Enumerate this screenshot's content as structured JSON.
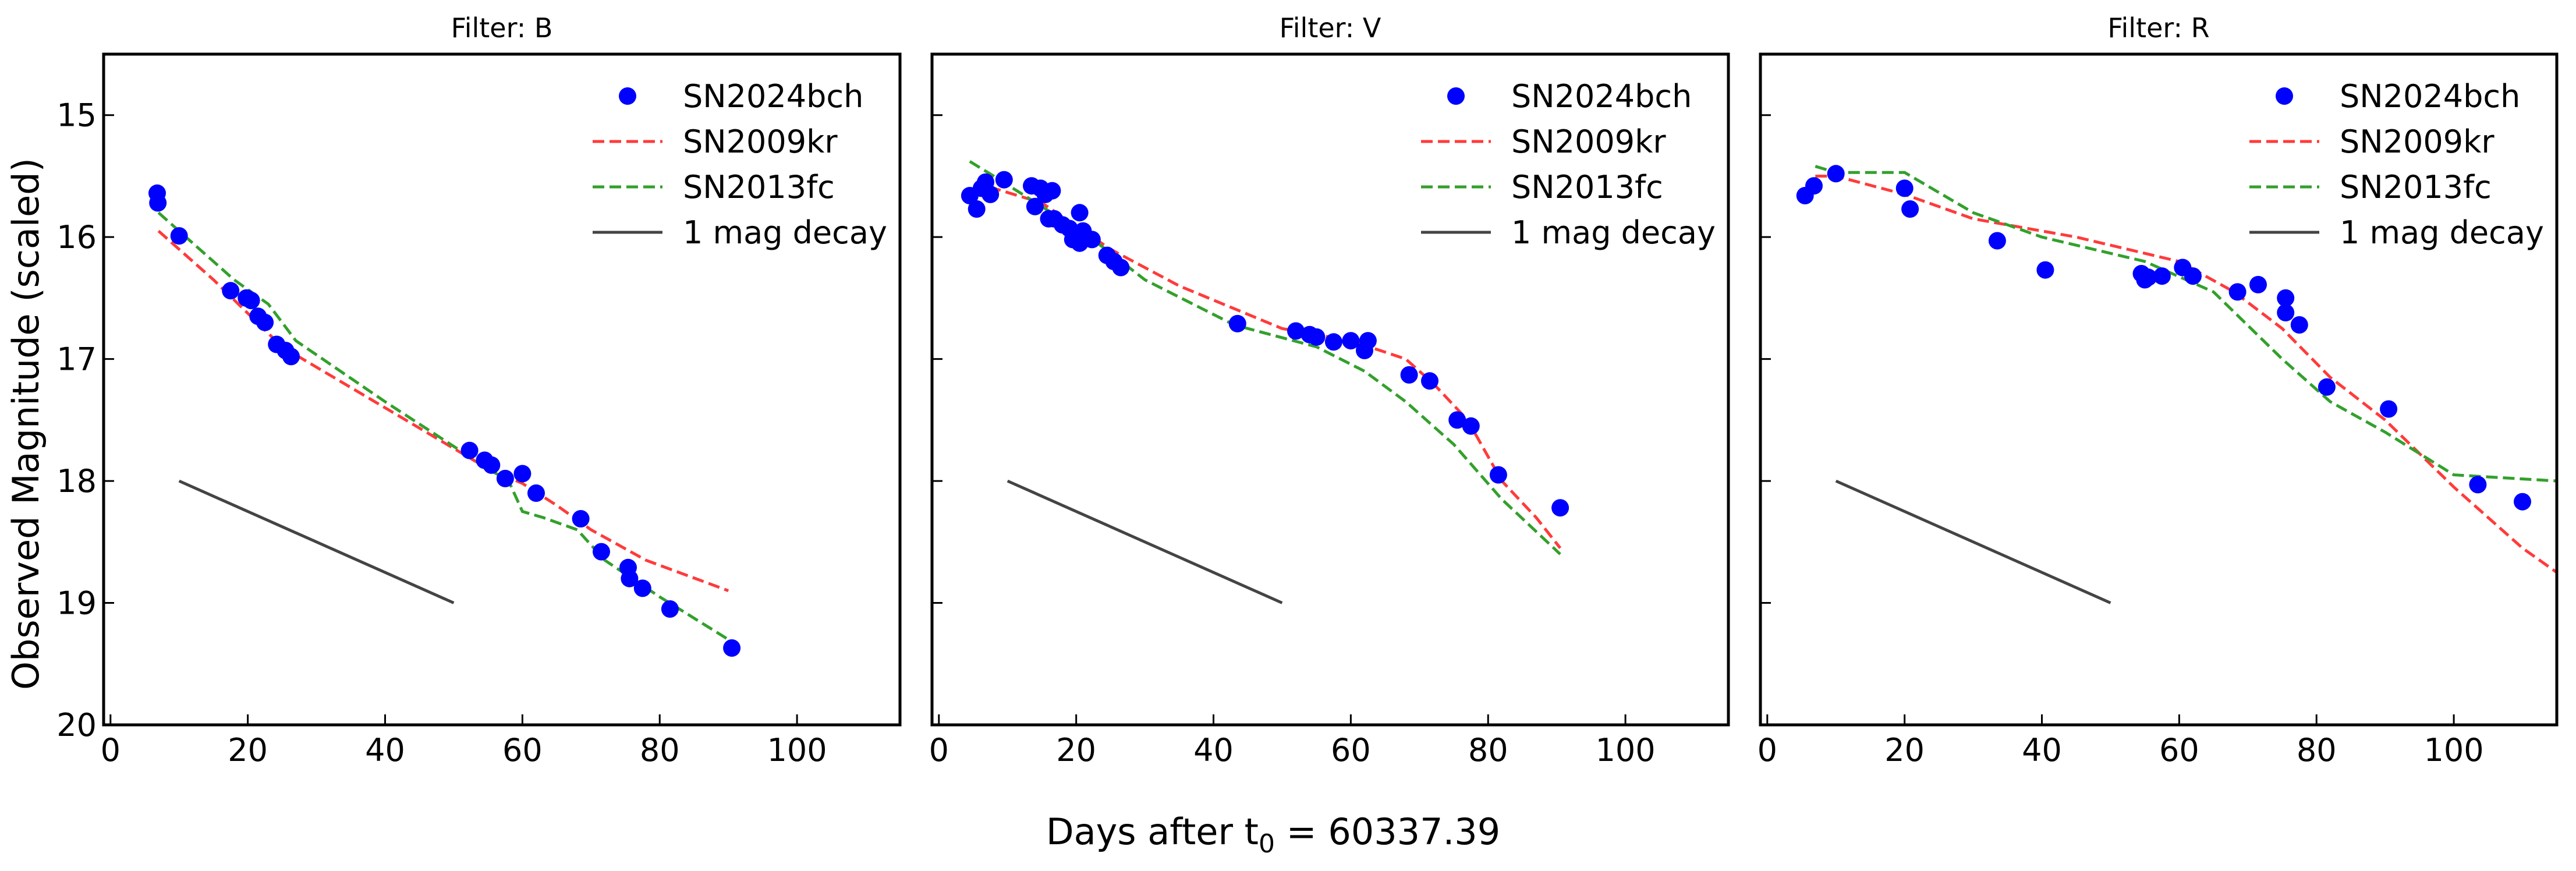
{
  "figure": {
    "ylabel": "Observed Magnitude (scaled)",
    "xlabel_prefix": "Days after t",
    "xlabel_sub": "0",
    "xlabel_suffix": " = 60337.39"
  },
  "colors": {
    "sn2024bch": "#0000ff",
    "sn2009kr": "#ff3b3b",
    "sn2013fc": "#33a02c",
    "decay": "#444444"
  },
  "chart_data": [
    {
      "type": "scatter+line",
      "title": "Filter: B",
      "xlim": [
        -1,
        115
      ],
      "ylim": [
        20,
        14.5
      ],
      "xticks": [
        0,
        20,
        40,
        60,
        80,
        100
      ],
      "yticks": [
        15,
        16,
        17,
        18,
        19,
        20
      ],
      "legend": [
        "SN2024bch",
        "SN2009kr",
        "SN2013fc",
        "1 mag decay"
      ],
      "legend_position": "top-right",
      "series": [
        {
          "name": "SN2024bch",
          "kind": "scatter",
          "points": [
            [
              6.8,
              15.64
            ],
            [
              6.9,
              15.72
            ],
            [
              10,
              15.99
            ],
            [
              17.5,
              16.44
            ],
            [
              19.8,
              16.5
            ],
            [
              20.5,
              16.52
            ],
            [
              21.5,
              16.65
            ],
            [
              22.5,
              16.7
            ],
            [
              24.2,
              16.88
            ],
            [
              25.5,
              16.93
            ],
            [
              26.3,
              16.98
            ],
            [
              52.3,
              17.75
            ],
            [
              54.5,
              17.83
            ],
            [
              55.5,
              17.87
            ],
            [
              57.5,
              17.98
            ],
            [
              60,
              17.94
            ],
            [
              62,
              18.1
            ],
            [
              68.5,
              18.31
            ],
            [
              71.5,
              18.58
            ],
            [
              75.4,
              18.71
            ],
            [
              75.6,
              18.8
            ],
            [
              77.5,
              18.88
            ],
            [
              81.5,
              19.05
            ],
            [
              90.5,
              19.37
            ]
          ]
        },
        {
          "name": "SN2009kr",
          "kind": "line",
          "points": [
            [
              7,
              15.95
            ],
            [
              15,
              16.35
            ],
            [
              25,
              16.9
            ],
            [
              40,
              17.4
            ],
            [
              55,
              17.9
            ],
            [
              60,
              18.02
            ],
            [
              65,
              18.2
            ],
            [
              70,
              18.4
            ],
            [
              78,
              18.65
            ],
            [
              90,
              18.9
            ]
          ]
        },
        {
          "name": "SN2013fc",
          "kind": "line",
          "points": [
            [
              7,
              15.8
            ],
            [
              12,
              16.05
            ],
            [
              18,
              16.35
            ],
            [
              23,
              16.55
            ],
            [
              25,
              16.7
            ],
            [
              27,
              16.85
            ],
            [
              40,
              17.35
            ],
            [
              55,
              17.9
            ],
            [
              58,
              18.0
            ],
            [
              60,
              18.25
            ],
            [
              63,
              18.3
            ],
            [
              68,
              18.4
            ],
            [
              72,
              18.65
            ],
            [
              80,
              18.95
            ],
            [
              90,
              19.3
            ]
          ]
        },
        {
          "name": "1 mag decay",
          "kind": "line",
          "points": [
            [
              10,
              18
            ],
            [
              50,
              19
            ]
          ]
        }
      ]
    },
    {
      "type": "scatter+line",
      "title": "Filter: V",
      "xlim": [
        -1,
        115
      ],
      "ylim": [
        20,
        14.5
      ],
      "xticks": [
        0,
        20,
        40,
        60,
        80,
        100
      ],
      "yticks": [
        15,
        16,
        17,
        18,
        19,
        20
      ],
      "legend": [
        "SN2024bch",
        "SN2009kr",
        "SN2013fc",
        "1 mag decay"
      ],
      "legend_position": "top-right",
      "series": [
        {
          "name": "SN2024bch",
          "kind": "scatter",
          "points": [
            [
              4.5,
              15.66
            ],
            [
              5.5,
              15.77
            ],
            [
              6.2,
              15.6
            ],
            [
              6.8,
              15.55
            ],
            [
              7.5,
              15.65
            ],
            [
              9.5,
              15.53
            ],
            [
              13.5,
              15.58
            ],
            [
              14.8,
              15.6
            ],
            [
              15.5,
              15.65
            ],
            [
              16.5,
              15.62
            ],
            [
              14,
              15.75
            ],
            [
              16,
              15.85
            ],
            [
              16.8,
              15.85
            ],
            [
              18,
              15.9
            ],
            [
              19,
              15.93
            ],
            [
              19.5,
              16.02
            ],
            [
              20.5,
              16.05
            ],
            [
              20.5,
              15.8
            ],
            [
              21,
              15.95
            ],
            [
              22.3,
              16.02
            ],
            [
              24.5,
              16.15
            ],
            [
              25.5,
              16.2
            ],
            [
              26.5,
              16.25
            ],
            [
              43.5,
              16.71
            ],
            [
              52,
              16.77
            ],
            [
              54,
              16.8
            ],
            [
              55,
              16.82
            ],
            [
              57.5,
              16.86
            ],
            [
              60,
              16.85
            ],
            [
              62,
              16.93
            ],
            [
              62.5,
              16.85
            ],
            [
              68.5,
              17.13
            ],
            [
              71.5,
              17.18
            ],
            [
              75.5,
              17.5
            ],
            [
              77.5,
              17.55
            ],
            [
              81.5,
              17.95
            ],
            [
              90.5,
              18.22
            ]
          ]
        },
        {
          "name": "SN2009kr",
          "kind": "line",
          "points": [
            [
              5,
              15.65
            ],
            [
              8,
              15.6
            ],
            [
              15,
              15.72
            ],
            [
              25,
              16.1
            ],
            [
              35,
              16.4
            ],
            [
              50,
              16.75
            ],
            [
              60,
              16.85
            ],
            [
              68,
              17.0
            ],
            [
              72,
              17.2
            ],
            [
              77,
              17.5
            ],
            [
              82,
              18.0
            ],
            [
              87,
              18.3
            ],
            [
              90.5,
              18.55
            ]
          ]
        },
        {
          "name": "SN2013fc",
          "kind": "line",
          "points": [
            [
              4.5,
              15.38
            ],
            [
              8,
              15.5
            ],
            [
              15,
              15.75
            ],
            [
              22,
              16.0
            ],
            [
              30,
              16.35
            ],
            [
              43,
              16.72
            ],
            [
              55,
              16.9
            ],
            [
              62,
              17.1
            ],
            [
              68,
              17.35
            ],
            [
              75,
              17.7
            ],
            [
              82,
              18.15
            ],
            [
              90.5,
              18.6
            ]
          ]
        },
        {
          "name": "1 mag decay",
          "kind": "line",
          "points": [
            [
              10,
              18
            ],
            [
              50,
              19
            ]
          ]
        }
      ]
    },
    {
      "type": "scatter+line",
      "title": "Filter: R",
      "xlim": [
        -1,
        115
      ],
      "ylim": [
        20,
        14.5
      ],
      "xticks": [
        0,
        20,
        40,
        60,
        80,
        100
      ],
      "yticks": [
        15,
        16,
        17,
        18,
        19,
        20
      ],
      "legend": [
        "SN2024bch",
        "SN2009kr",
        "SN2013fc",
        "1 mag decay"
      ],
      "legend_position": "top-right",
      "series": [
        {
          "name": "SN2024bch",
          "kind": "scatter",
          "points": [
            [
              5.5,
              15.66
            ],
            [
              6.8,
              15.58
            ],
            [
              10,
              15.48
            ],
            [
              20,
              15.6
            ],
            [
              20.8,
              15.77
            ],
            [
              33.5,
              16.03
            ],
            [
              40.5,
              16.27
            ],
            [
              54.5,
              16.3
            ],
            [
              55,
              16.35
            ],
            [
              55.5,
              16.33
            ],
            [
              57.5,
              16.32
            ],
            [
              60.5,
              16.25
            ],
            [
              62,
              16.32
            ],
            [
              68.5,
              16.45
            ],
            [
              71.5,
              16.39
            ],
            [
              75.5,
              16.5
            ],
            [
              75.5,
              16.62
            ],
            [
              77.5,
              16.72
            ],
            [
              81.5,
              17.23
            ],
            [
              90.5,
              17.41
            ],
            [
              103.5,
              18.03
            ],
            [
              110,
              18.17
            ]
          ]
        },
        {
          "name": "SN2009kr",
          "kind": "line",
          "points": [
            [
              7,
              15.5
            ],
            [
              10,
              15.5
            ],
            [
              20,
              15.65
            ],
            [
              30,
              15.85
            ],
            [
              45,
              16.0
            ],
            [
              60,
              16.2
            ],
            [
              68,
              16.45
            ],
            [
              75,
              16.75
            ],
            [
              82,
              17.15
            ],
            [
              90,
              17.5
            ],
            [
              100,
              18.05
            ],
            [
              110,
              18.55
            ],
            [
              115,
              18.75
            ]
          ]
        },
        {
          "name": "SN2013fc",
          "kind": "line",
          "points": [
            [
              7,
              15.42
            ],
            [
              10,
              15.47
            ],
            [
              20,
              15.47
            ],
            [
              30,
              15.8
            ],
            [
              40,
              16.0
            ],
            [
              55,
              16.2
            ],
            [
              65,
              16.45
            ],
            [
              75,
              17.0
            ],
            [
              82,
              17.35
            ],
            [
              90,
              17.6
            ],
            [
              100,
              17.95
            ],
            [
              115,
              18.0
            ]
          ]
        },
        {
          "name": "1 mag decay",
          "kind": "line",
          "points": [
            [
              10,
              18
            ],
            [
              50,
              19
            ]
          ]
        }
      ]
    }
  ]
}
